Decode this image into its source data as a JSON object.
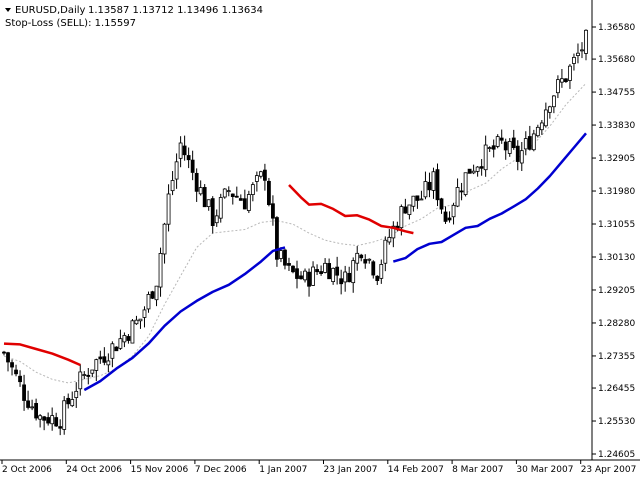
{
  "header": {
    "title": "EURUSD,Daily",
    "ohlc": "1.13587 1.13712 1.13496 1.13634",
    "stoploss_label": "Stop-Loss (SELL): 1.15597"
  },
  "colors": {
    "background": "#ffffff",
    "candle": "#000000",
    "stop_loss": "#e00000",
    "trend_ma": "#0000d0",
    "signal_ma": "#b8b8b8",
    "axis": "#000000"
  },
  "chart_data": {
    "type": "candlestick",
    "symbol": "EURUSD",
    "timeframe": "Daily",
    "ylim": [
      1.24605,
      1.3658
    ],
    "y_ticks": [
      "1.36580",
      "1.35680",
      "1.34755",
      "1.33830",
      "1.32905",
      "1.31980",
      "1.31055",
      "1.30130",
      "1.29205",
      "1.28280",
      "1.27355",
      "1.26455",
      "1.25530",
      "1.24605"
    ],
    "x_ticks": [
      "2 Oct 2006",
      "24 Oct 2006",
      "15 Nov 2006",
      "7 Dec 2006",
      "1 Jan 2007",
      "23 Jan 2007",
      "14 Feb 2007",
      "8 Mar 2007",
      "30 Mar 2007",
      "23 Apr 2007"
    ],
    "candle_count": 146,
    "close_anchors": [
      [
        0,
        1.2745
      ],
      [
        5,
        1.263
      ],
      [
        9,
        1.2565
      ],
      [
        14,
        1.256
      ],
      [
        18,
        1.265
      ],
      [
        22,
        1.271
      ],
      [
        28,
        1.277
      ],
      [
        34,
        1.284
      ],
      [
        38,
        1.295
      ],
      [
        41,
        1.318
      ],
      [
        44,
        1.333
      ],
      [
        47,
        1.325
      ],
      [
        52,
        1.312
      ],
      [
        56,
        1.32
      ],
      [
        60,
        1.317
      ],
      [
        65,
        1.325
      ],
      [
        68,
        1.302
      ],
      [
        71,
        1.297
      ],
      [
        75,
        1.295
      ],
      [
        80,
        1.299
      ],
      [
        85,
        1.295
      ],
      [
        89,
        1.304
      ],
      [
        93,
        1.297
      ],
      [
        96,
        1.307
      ],
      [
        100,
        1.316
      ],
      [
        104,
        1.318
      ],
      [
        107,
        1.323
      ],
      [
        110,
        1.312
      ],
      [
        113,
        1.32
      ],
      [
        116,
        1.326
      ],
      [
        120,
        1.33
      ],
      [
        124,
        1.333
      ],
      [
        128,
        1.329
      ],
      [
        132,
        1.336
      ],
      [
        136,
        1.346
      ],
      [
        140,
        1.352
      ],
      [
        145,
        1.362
      ]
    ],
    "stop_loss_segments": [
      {
        "points": [
          [
            0,
            1.277
          ],
          [
            4,
            1.2768
          ],
          [
            8,
            1.2755
          ],
          [
            12,
            1.2742
          ],
          [
            16,
            1.2725
          ],
          [
            19,
            1.271
          ]
        ]
      },
      {
        "points": [
          [
            71,
            1.3215
          ],
          [
            74,
            1.318
          ],
          [
            76,
            1.316
          ],
          [
            79,
            1.3162
          ],
          [
            82,
            1.3148
          ],
          [
            85,
            1.3128
          ],
          [
            88,
            1.313
          ],
          [
            91,
            1.3118
          ],
          [
            94,
            1.31
          ],
          [
            97,
            1.3095
          ],
          [
            100,
            1.3085
          ],
          [
            102,
            1.308
          ]
        ]
      }
    ],
    "trend_ma_segments": [
      {
        "points": [
          [
            20,
            1.264
          ],
          [
            24,
            1.2665
          ],
          [
            28,
            1.27
          ],
          [
            32,
            1.273
          ],
          [
            36,
            1.277
          ],
          [
            40,
            1.282
          ],
          [
            44,
            1.286
          ],
          [
            48,
            1.289
          ],
          [
            52,
            1.2915
          ],
          [
            56,
            1.2935
          ],
          [
            60,
            1.2965
          ],
          [
            64,
            1.3
          ],
          [
            67,
            1.303
          ],
          [
            70,
            1.304
          ]
        ]
      },
      {
        "points": [
          [
            97,
            1.3
          ],
          [
            100,
            1.301
          ],
          [
            103,
            1.3035
          ],
          [
            106,
            1.305
          ],
          [
            109,
            1.3055
          ],
          [
            112,
            1.3075
          ],
          [
            115,
            1.3095
          ],
          [
            118,
            1.31
          ],
          [
            121,
            1.312
          ],
          [
            124,
            1.3135
          ],
          [
            127,
            1.3155
          ],
          [
            130,
            1.3175
          ],
          [
            133,
            1.3205
          ],
          [
            136,
            1.324
          ],
          [
            139,
            1.328
          ],
          [
            142,
            1.332
          ],
          [
            145,
            1.336
          ]
        ]
      }
    ],
    "signal_ma": [
      [
        0,
        1.2735
      ],
      [
        4,
        1.272
      ],
      [
        8,
        1.269
      ],
      [
        12,
        1.267
      ],
      [
        16,
        1.266
      ],
      [
        20,
        1.267
      ],
      [
        24,
        1.268
      ],
      [
        28,
        1.27
      ],
      [
        32,
        1.2735
      ],
      [
        36,
        1.279
      ],
      [
        40,
        1.288
      ],
      [
        44,
        1.296
      ],
      [
        48,
        1.304
      ],
      [
        52,
        1.308
      ],
      [
        56,
        1.3085
      ],
      [
        60,
        1.309
      ],
      [
        64,
        1.311
      ],
      [
        68,
        1.3115
      ],
      [
        72,
        1.3105
      ],
      [
        76,
        1.308
      ],
      [
        80,
        1.306
      ],
      [
        84,
        1.305
      ],
      [
        88,
        1.3045
      ],
      [
        92,
        1.3055
      ],
      [
        96,
        1.307
      ],
      [
        100,
        1.31
      ],
      [
        104,
        1.312
      ],
      [
        108,
        1.315
      ],
      [
        112,
        1.316
      ],
      [
        116,
        1.32
      ],
      [
        120,
        1.322
      ],
      [
        124,
        1.326
      ],
      [
        128,
        1.329
      ],
      [
        132,
        1.333
      ],
      [
        136,
        1.338
      ],
      [
        140,
        1.344
      ],
      [
        145,
        1.35
      ]
    ]
  }
}
